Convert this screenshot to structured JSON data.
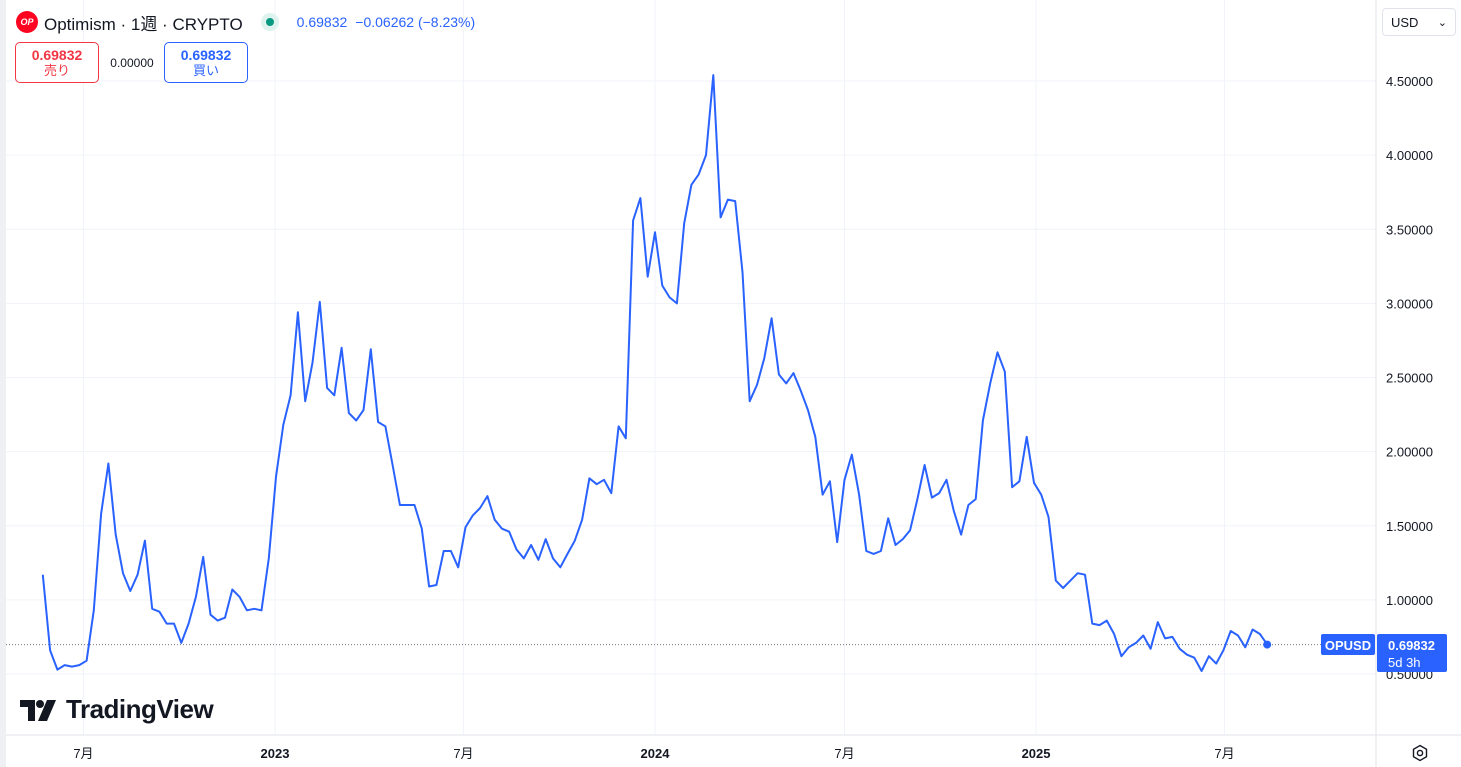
{
  "header": {
    "logo_text": "OP",
    "symbol_title": "Optimism · 1週 · CRYPTO",
    "last_price": "0.69832",
    "change": "−0.06262 (−8.23%)",
    "icons": {
      "status": "market-open-dot",
      "settings": "gear-icon",
      "dropdown": "chevron-down-icon"
    }
  },
  "trade": {
    "sell_price": "0.69832",
    "sell_label": "売り",
    "spread": "0.00000",
    "buy_price": "0.69832",
    "buy_label": "買い"
  },
  "currency": {
    "value": "USD"
  },
  "brand": {
    "name": "TradingView"
  },
  "price_tag": {
    "symbol": "OPUSD",
    "price": "0.69832",
    "countdown": "5d 3h"
  },
  "colors": {
    "line": "#2962ff",
    "sell": "#f23645",
    "buy": "#2962ff",
    "status": "#089981"
  },
  "chart_data": {
    "type": "line",
    "series": [
      {
        "name": "OPUSD",
        "values": [
          1.17,
          0.66,
          0.53,
          0.56,
          0.55,
          0.56,
          0.59,
          0.93,
          1.58,
          1.92,
          1.44,
          1.18,
          1.06,
          1.17,
          1.4,
          0.94,
          0.92,
          0.84,
          0.84,
          0.71,
          0.84,
          1.02,
          1.29,
          0.9,
          0.86,
          0.88,
          1.07,
          1.02,
          0.93,
          0.94,
          0.93,
          1.28,
          1.83,
          2.18,
          2.38,
          2.94,
          2.34,
          2.6,
          3.01,
          2.43,
          2.38,
          2.7,
          2.26,
          2.21,
          2.28,
          2.69,
          2.2,
          2.17,
          1.91,
          1.64,
          1.64,
          1.64,
          1.48,
          1.09,
          1.1,
          1.33,
          1.33,
          1.22,
          1.49,
          1.57,
          1.62,
          1.7,
          1.54,
          1.48,
          1.46,
          1.34,
          1.28,
          1.37,
          1.27,
          1.41,
          1.28,
          1.22,
          1.31,
          1.4,
          1.54,
          1.82,
          1.78,
          1.81,
          1.72,
          2.17,
          2.09,
          3.56,
          3.71,
          3.18,
          3.48,
          3.12,
          3.04,
          3.0,
          3.54,
          3.8,
          3.87,
          4.0,
          4.54,
          3.58,
          3.7,
          3.69,
          3.21,
          2.34,
          2.45,
          2.63,
          2.9,
          2.52,
          2.46,
          2.53,
          2.41,
          2.28,
          2.1,
          1.71,
          1.8,
          1.39,
          1.81,
          1.98,
          1.71,
          1.33,
          1.31,
          1.33,
          1.55,
          1.37,
          1.41,
          1.47,
          1.68,
          1.91,
          1.69,
          1.72,
          1.81,
          1.6,
          1.44,
          1.64,
          1.68,
          2.21,
          2.46,
          2.67,
          2.54,
          1.76,
          1.8,
          2.1,
          1.79,
          1.71,
          1.56,
          1.13,
          1.08,
          1.13,
          1.18,
          1.17,
          0.84,
          0.83,
          0.86,
          0.77,
          0.62,
          0.68,
          0.71,
          0.76,
          0.67,
          0.85,
          0.74,
          0.75,
          0.67,
          0.63,
          0.61,
          0.52,
          0.62,
          0.57,
          0.66,
          0.79,
          0.76,
          0.68,
          0.8,
          0.77,
          0.7
        ]
      }
    ],
    "x_tick_labels": [
      "7月",
      "2023",
      "7月",
      "2024",
      "7月",
      "2025",
      "7月"
    ],
    "y_tick_labels": [
      "0.50000",
      "1.00000",
      "1.50000",
      "2.00000",
      "2.50000",
      "3.00000",
      "3.50000",
      "4.00000",
      "4.50000"
    ],
    "y_ticks": [
      0.5,
      1.0,
      1.5,
      2.0,
      2.5,
      3.0,
      3.5,
      4.0,
      4.5
    ],
    "ylim": [
      0.1,
      4.75
    ],
    "x_start": "2022-05-23",
    "x_step_weeks": 1,
    "x_tick_dates": [
      "2022-07-01",
      "2023-01-01",
      "2023-07-01",
      "2024-01-01",
      "2024-07-01",
      "2025-01-01",
      "2025-07-01"
    ],
    "grid": true,
    "last_value": 0.69832
  }
}
